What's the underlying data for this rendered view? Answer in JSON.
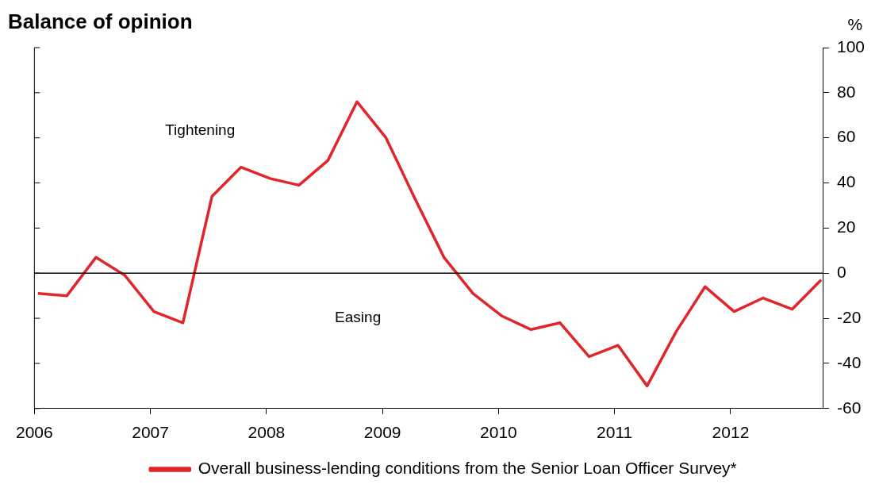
{
  "chart_data": {
    "type": "line",
    "title": "Balance of opinion",
    "ylabel": "%",
    "x": [
      2006.03,
      2006.28,
      2006.53,
      2006.78,
      2007.03,
      2007.28,
      2007.53,
      2007.78,
      2008.03,
      2008.28,
      2008.53,
      2008.78,
      2009.03,
      2009.28,
      2009.53,
      2009.78,
      2010.03,
      2010.28,
      2010.53,
      2010.78,
      2011.03,
      2011.28,
      2011.53,
      2011.78,
      2012.03,
      2012.28,
      2012.53,
      2012.78
    ],
    "series": [
      {
        "name": "Overall business-lending conditions from the Senior Loan Officer Survey*",
        "color": "#e0262b",
        "values": [
          -9,
          -10,
          7,
          -1,
          -17,
          -22,
          34,
          47,
          42,
          39,
          50,
          76,
          60,
          33,
          7,
          -9,
          -19,
          -25,
          -22,
          -37,
          -32,
          -50,
          -26,
          -6,
          -17,
          -11,
          -16,
          -3
        ]
      }
    ],
    "xlim": [
      2006,
      2012.8
    ],
    "xticks": [
      2006,
      2007,
      2008,
      2009,
      2010,
      2011,
      2012
    ],
    "ylim": [
      -60,
      100
    ],
    "yticks": [
      -60,
      -40,
      -20,
      0,
      20,
      40,
      60,
      80,
      100
    ],
    "ref_lines": [
      {
        "axis": "y",
        "value": 0,
        "color": "#000000"
      }
    ],
    "annotations": [
      "Tightening",
      "Easing"
    ],
    "grid": false,
    "legend": "bottom",
    "marker": "none",
    "line_style": "solid"
  }
}
